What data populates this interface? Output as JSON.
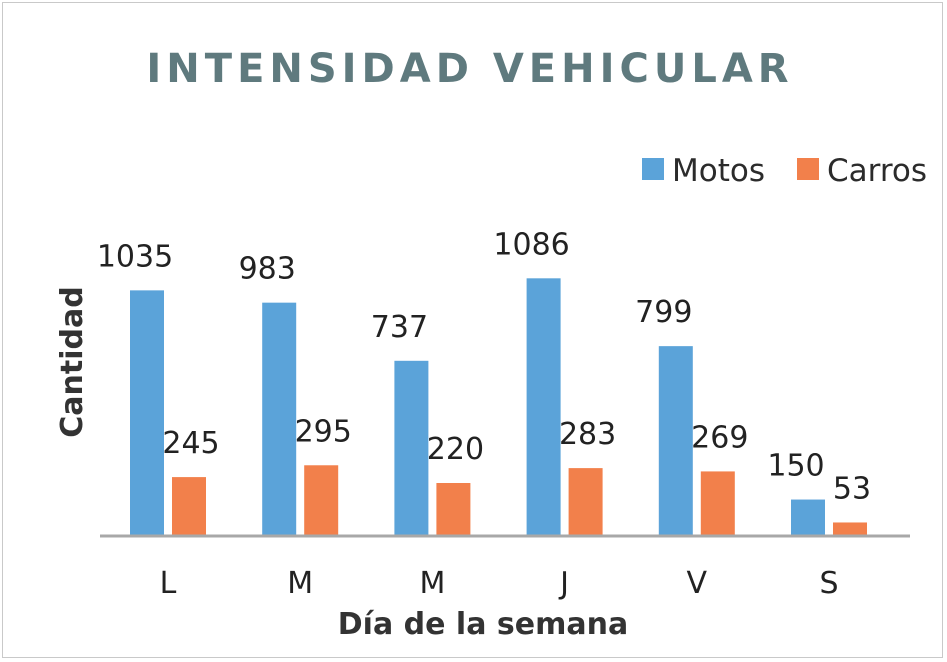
{
  "chart_data": {
    "type": "bar",
    "title": "INTENSIDAD VEHICULAR",
    "xlabel": "Día de la semana",
    "ylabel": "Cantidad",
    "categories": [
      "L",
      "M",
      "M",
      "J",
      "V",
      "S"
    ],
    "series": [
      {
        "name": "Motos",
        "color": "#5BA3D9",
        "values": [
          1035,
          983,
          737,
          1086,
          799,
          150
        ]
      },
      {
        "name": "Carros",
        "color": "#F2804B",
        "values": [
          245,
          295,
          220,
          283,
          269,
          53
        ]
      }
    ],
    "ylim": [
      0,
      1100
    ],
    "grid": false,
    "legend_position": "top-right",
    "title_color": "#5F7A7E",
    "axis_color": "#A8A8A8"
  }
}
